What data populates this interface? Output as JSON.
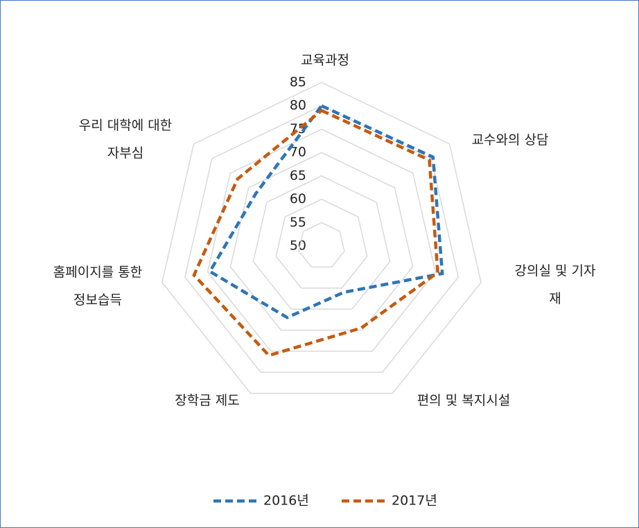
{
  "chart_data": {
    "type": "radar",
    "categories": [
      "교육과정",
      "교수와의 상담",
      "강의실 및 기자재",
      "편의 및 복지시설",
      "장학금 제도",
      "홈페이지를 통한\n정보습득",
      "우리 대학에 대한\n자부심"
    ],
    "series": [
      {
        "name": "2016년",
        "color": "#2e75b6",
        "values": [
          80,
          80.5,
          76.5,
          61,
          67,
          74.5,
          68
        ]
      },
      {
        "name": "2017년",
        "color": "#c55a11",
        "values": [
          79,
          79.5,
          75.5,
          69.5,
          76,
          78,
          73
        ]
      }
    ],
    "ylim": [
      50,
      85
    ],
    "yticks": [
      50,
      55,
      60,
      65,
      70,
      75,
      80,
      85
    ],
    "grid": true,
    "legend": "bottom"
  }
}
